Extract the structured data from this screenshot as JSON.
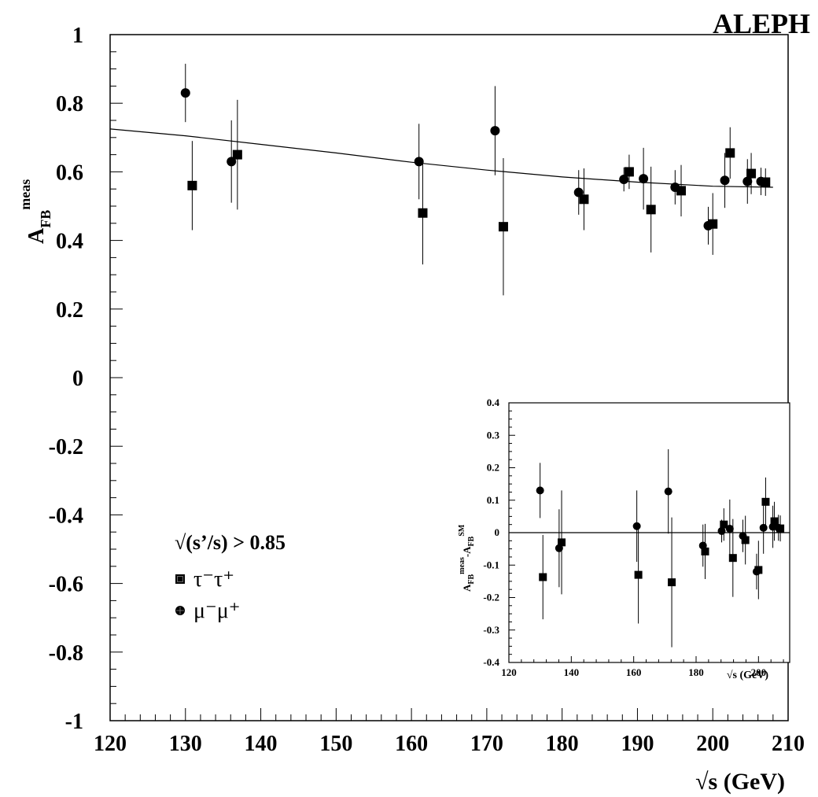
{
  "chart_data": [
    {
      "type": "scatter",
      "experiment_label": "ALEPH",
      "xlabel": "√s (GeV)",
      "ylabel_main": "A",
      "ylabel_sub": "FB",
      "ylabel_sup": "meas",
      "xlim": [
        120,
        210
      ],
      "ylim": [
        -1,
        1
      ],
      "x_ticks": [
        "120",
        "130",
        "140",
        "150",
        "160",
        "170",
        "180",
        "190",
        "200",
        "210"
      ],
      "y_ticks": [
        "-1",
        "-0.8",
        "-0.6",
        "-0.4",
        "-0.2",
        "0",
        "0.2",
        "0.4",
        "0.6",
        "0.8",
        "1"
      ],
      "legend": {
        "title": "√(s’/s)  > 0.85",
        "position": "lower-left",
        "entries": [
          {
            "label": "τ⁻τ⁺",
            "marker": "square"
          },
          {
            "label": "μ⁻μ⁺",
            "marker": "circle"
          }
        ]
      },
      "series": [
        {
          "name": "τ⁻τ⁺",
          "marker": "square",
          "points": [
            {
              "x": 130.9,
              "y": 0.56,
              "err": 0.13
            },
            {
              "x": 136.9,
              "y": 0.65,
              "err": 0.16
            },
            {
              "x": 161.5,
              "y": 0.48,
              "err": 0.15
            },
            {
              "x": 172.2,
              "y": 0.44,
              "err": 0.2
            },
            {
              "x": 182.9,
              "y": 0.52,
              "err": 0.09
            },
            {
              "x": 188.9,
              "y": 0.6,
              "err": 0.05
            },
            {
              "x": 191.8,
              "y": 0.49,
              "err": 0.125
            },
            {
              "x": 195.8,
              "y": 0.545,
              "err": 0.075
            },
            {
              "x": 200.0,
              "y": 0.448,
              "err": 0.09
            },
            {
              "x": 202.3,
              "y": 0.655,
              "err": 0.075
            },
            {
              "x": 205.1,
              "y": 0.595,
              "err": 0.06
            },
            {
              "x": 207.0,
              "y": 0.57,
              "err": 0.04
            }
          ]
        },
        {
          "name": "μ⁻μ⁺",
          "marker": "circle",
          "points": [
            {
              "x": 130.0,
              "y": 0.83,
              "err": 0.085
            },
            {
              "x": 136.1,
              "y": 0.63,
              "err": 0.12
            },
            {
              "x": 161.0,
              "y": 0.63,
              "err": 0.11
            },
            {
              "x": 171.1,
              "y": 0.72,
              "err": 0.13
            },
            {
              "x": 182.2,
              "y": 0.54,
              "err": 0.065
            },
            {
              "x": 188.2,
              "y": 0.578,
              "err": 0.035
            },
            {
              "x": 190.8,
              "y": 0.58,
              "err": 0.09
            },
            {
              "x": 195.0,
              "y": 0.555,
              "err": 0.05
            },
            {
              "x": 199.4,
              "y": 0.443,
              "err": 0.055
            },
            {
              "x": 201.6,
              "y": 0.575,
              "err": 0.08
            },
            {
              "x": 204.6,
              "y": 0.572,
              "err": 0.065
            },
            {
              "x": 206.4,
              "y": 0.572,
              "err": 0.04
            }
          ]
        }
      ],
      "sm_curve": {
        "x": [
          120,
          130,
          140,
          150,
          160,
          170,
          180,
          190,
          200,
          208
        ],
        "y": [
          0.725,
          0.705,
          0.68,
          0.655,
          0.628,
          0.605,
          0.585,
          0.57,
          0.558,
          0.555
        ]
      }
    },
    {
      "type": "scatter",
      "inset": true,
      "xlabel": "√s (GeV)",
      "ylabel_main": "A",
      "ylabel_sub": "FB",
      "ylabel_sup": "meas",
      "ylabel_minus": "-A",
      "ylabel_sub2": "FB",
      "ylabel_sup2": "SM",
      "xlim": [
        120,
        210
      ],
      "ylim": [
        -0.4,
        0.4
      ],
      "x_ticks": [
        "120",
        "140",
        "160",
        "180",
        "200"
      ],
      "y_ticks": [
        "-0.4",
        "-0.3",
        "-0.2",
        "-0.1",
        "0",
        "0.1",
        "0.2",
        "0.3",
        "0.4"
      ],
      "series": [
        {
          "name": "τ⁻τ⁺",
          "marker": "square",
          "points": [
            {
              "x": 130.9,
              "y": -0.137,
              "err": 0.13
            },
            {
              "x": 136.9,
              "y": -0.03,
              "err": 0.16
            },
            {
              "x": 161.5,
              "y": -0.13,
              "err": 0.15
            },
            {
              "x": 172.2,
              "y": -0.153,
              "err": 0.2
            },
            {
              "x": 182.9,
              "y": -0.058,
              "err": 0.085
            },
            {
              "x": 188.9,
              "y": 0.025,
              "err": 0.05
            },
            {
              "x": 191.8,
              "y": -0.078,
              "err": 0.12
            },
            {
              "x": 195.8,
              "y": -0.023,
              "err": 0.075
            },
            {
              "x": 200.0,
              "y": -0.115,
              "err": 0.09
            },
            {
              "x": 202.3,
              "y": 0.095,
              "err": 0.075
            },
            {
              "x": 205.1,
              "y": 0.035,
              "err": 0.06
            },
            {
              "x": 207.0,
              "y": 0.013,
              "err": 0.04
            }
          ]
        },
        {
          "name": "μ⁻μ⁺",
          "marker": "circle",
          "points": [
            {
              "x": 130.0,
              "y": 0.13,
              "err": 0.085
            },
            {
              "x": 136.1,
              "y": -0.048,
              "err": 0.12
            },
            {
              "x": 161.0,
              "y": 0.02,
              "err": 0.11
            },
            {
              "x": 171.1,
              "y": 0.127,
              "err": 0.13
            },
            {
              "x": 182.2,
              "y": -0.04,
              "err": 0.065
            },
            {
              "x": 188.2,
              "y": 0.005,
              "err": 0.035
            },
            {
              "x": 190.8,
              "y": 0.012,
              "err": 0.09
            },
            {
              "x": 195.0,
              "y": -0.01,
              "err": 0.05
            },
            {
              "x": 199.4,
              "y": -0.12,
              "err": 0.055
            },
            {
              "x": 201.6,
              "y": 0.015,
              "err": 0.08
            },
            {
              "x": 204.6,
              "y": 0.018,
              "err": 0.065
            },
            {
              "x": 206.4,
              "y": 0.015,
              "err": 0.04
            }
          ]
        }
      ],
      "reference_line": 0
    }
  ]
}
